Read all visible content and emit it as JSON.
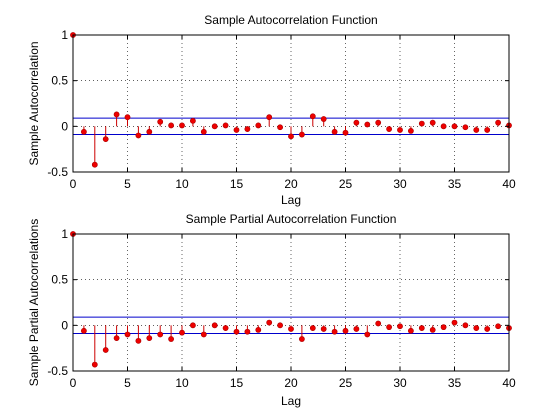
{
  "chart_data": [
    {
      "type": "stem",
      "title": "Sample Autocorrelation Function",
      "xlabel": "Lag",
      "ylabel": "Sample Autocorrelation",
      "xlim": [
        0,
        40
      ],
      "ylim": [
        -0.5,
        1
      ],
      "xticks": [
        0,
        5,
        10,
        15,
        20,
        25,
        30,
        35,
        40
      ],
      "xtick_labels": [
        "0",
        "5",
        "10",
        "15",
        "20",
        "25",
        "30",
        "35",
        "40"
      ],
      "yticks": [
        -0.5,
        0,
        0.5,
        1
      ],
      "ytick_labels": [
        "-0.5",
        "0",
        "0.5",
        "1"
      ],
      "grid": true,
      "confidence_bound": 0.09,
      "series": [
        {
          "lags": [
            0,
            1,
            2,
            3,
            4,
            5,
            6,
            7,
            8,
            9,
            10,
            11,
            12,
            13,
            14,
            15,
            16,
            17,
            18,
            19,
            20,
            21,
            22,
            23,
            24,
            25,
            26,
            27,
            28,
            29,
            30,
            31,
            32,
            33,
            34,
            35,
            36,
            37,
            38,
            39,
            40
          ],
          "values": [
            1.0,
            -0.06,
            -0.42,
            -0.14,
            0.13,
            0.1,
            -0.1,
            -0.06,
            0.05,
            0.01,
            0.01,
            0.06,
            -0.06,
            0.0,
            0.01,
            -0.04,
            -0.03,
            0.01,
            0.1,
            -0.01,
            -0.11,
            -0.09,
            0.11,
            0.08,
            -0.06,
            -0.07,
            0.04,
            0.02,
            0.04,
            -0.03,
            -0.04,
            -0.05,
            0.03,
            0.04,
            0.0,
            0.0,
            -0.01,
            -0.04,
            -0.04,
            0.04,
            0.01
          ]
        }
      ]
    },
    {
      "type": "stem",
      "title": "Sample Partial Autocorrelation Function",
      "xlabel": "Lag",
      "ylabel": "Sample Partial Autocorrelations",
      "xlim": [
        0,
        40
      ],
      "ylim": [
        -0.5,
        1
      ],
      "xticks": [
        0,
        5,
        10,
        15,
        20,
        25,
        30,
        35,
        40
      ],
      "xtick_labels": [
        "0",
        "5",
        "10",
        "15",
        "20",
        "25",
        "30",
        "35",
        "40"
      ],
      "yticks": [
        -0.5,
        0,
        0.5,
        1
      ],
      "ytick_labels": [
        "-0.5",
        "0",
        "0.5",
        "1"
      ],
      "grid": true,
      "confidence_bound": 0.09,
      "series": [
        {
          "lags": [
            0,
            1,
            2,
            3,
            4,
            5,
            6,
            7,
            8,
            9,
            10,
            11,
            12,
            13,
            14,
            15,
            16,
            17,
            18,
            19,
            20,
            21,
            22,
            23,
            24,
            25,
            26,
            27,
            28,
            29,
            30,
            31,
            32,
            33,
            34,
            35,
            36,
            37,
            38,
            39,
            40
          ],
          "values": [
            1.0,
            -0.06,
            -0.43,
            -0.27,
            -0.14,
            -0.1,
            -0.17,
            -0.14,
            -0.1,
            -0.15,
            -0.08,
            0.0,
            -0.1,
            0.0,
            -0.03,
            -0.07,
            -0.07,
            -0.05,
            0.03,
            0.0,
            -0.04,
            -0.15,
            -0.03,
            -0.04,
            -0.07,
            -0.06,
            -0.04,
            -0.1,
            0.02,
            -0.02,
            -0.01,
            -0.06,
            -0.03,
            -0.05,
            -0.02,
            0.03,
            0.0,
            -0.03,
            -0.04,
            -0.01,
            -0.03
          ]
        }
      ]
    }
  ],
  "colors": {
    "stem": "#cc0000",
    "marker": "#ee0000",
    "bound": "#0000cc",
    "axis": "#000000",
    "grid": "#000000"
  }
}
